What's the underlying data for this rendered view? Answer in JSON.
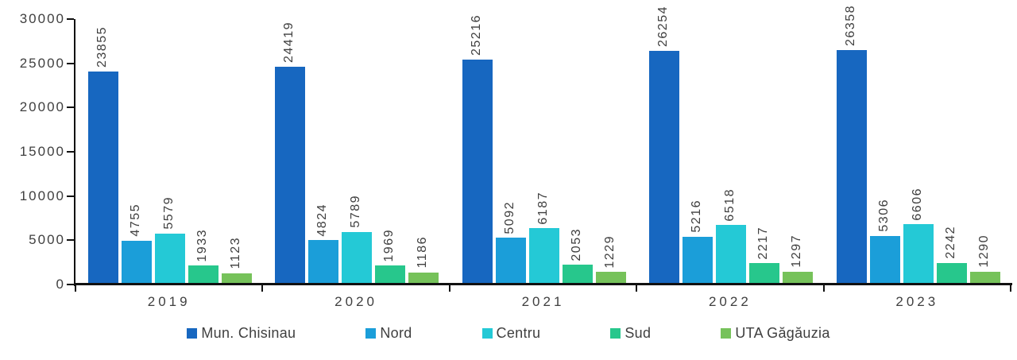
{
  "chart_data": {
    "type": "bar",
    "title": "",
    "categories": [
      "2019",
      "2020",
      "2021",
      "2022",
      "2023"
    ],
    "series": [
      {
        "name": "Mun. Chisinau",
        "color": "#1767C0",
        "values": [
          23855,
          24419,
          25216,
          26254,
          26358
        ]
      },
      {
        "name": "Nord",
        "color": "#1B9ED9",
        "values": [
          4755,
          4824,
          5092,
          5216,
          5306
        ]
      },
      {
        "name": "Centru",
        "color": "#24C9D6",
        "values": [
          5579,
          5789,
          6187,
          6518,
          6606
        ]
      },
      {
        "name": "Sud",
        "color": "#27C78C",
        "values": [
          1933,
          1969,
          2053,
          2217,
          2242
        ]
      },
      {
        "name": "UTA Găgăuzia",
        "color": "#76C25A",
        "values": [
          1123,
          1186,
          1229,
          1297,
          1290
        ]
      }
    ],
    "y_axis": {
      "min": 0,
      "max": 30000,
      "step": 5000,
      "tick_labels": [
        "0",
        "5000",
        "10000",
        "15000",
        "20000",
        "25000",
        "30000"
      ]
    },
    "x_axis": {
      "tick_labels": [
        "2019",
        "2020",
        "2021",
        "2022",
        "2023"
      ]
    },
    "legend": {
      "position": "bottom",
      "entries": [
        "Mun. Chisinau",
        "Nord",
        "Centru",
        "Sud",
        "UTA Găgăuzia"
      ]
    },
    "value_labels": "rotated-90-above-bars",
    "grid": false,
    "background_color": "#FFFFFF",
    "axis_color": "#111111",
    "label_color": "#3F3F3F"
  }
}
